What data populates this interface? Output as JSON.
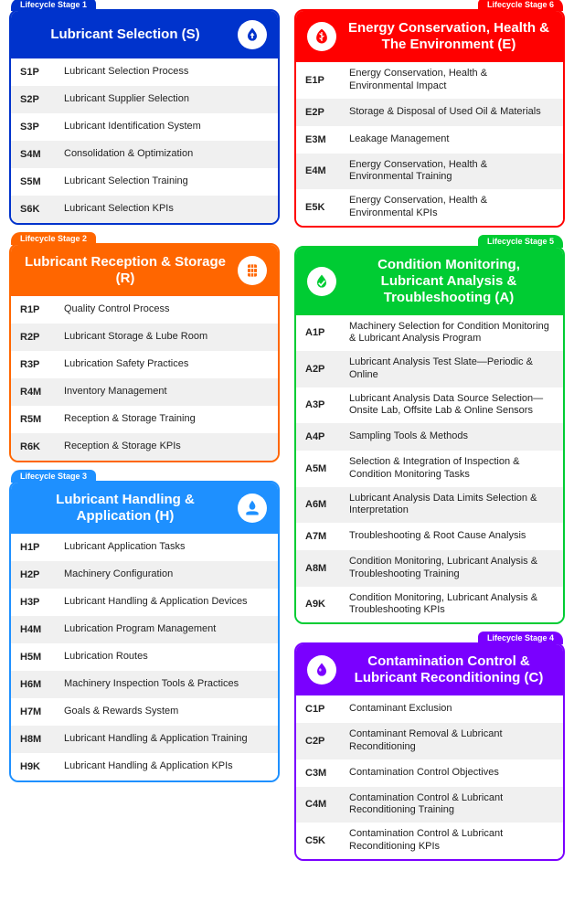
{
  "colors": {
    "blue": "#0033cc",
    "red": "#ff0000",
    "orange": "#ff6600",
    "green": "#00cc33",
    "lightblue": "#1e90ff",
    "purple": "#7a00ff"
  },
  "stages": {
    "s1": {
      "tab": "Lifecycle Stage 1",
      "title": "Lubricant Selection (S)",
      "color": "#0033cc",
      "tabSide": "left",
      "iconSide": "right",
      "rows": [
        {
          "code": "S1P",
          "label": "Lubricant Selection Process"
        },
        {
          "code": "S2P",
          "label": "Lubricant Supplier Selection"
        },
        {
          "code": "S3P",
          "label": "Lubricant Identification System"
        },
        {
          "code": "S4M",
          "label": "Consolidation & Optimization"
        },
        {
          "code": "S5M",
          "label": "Lubricant Selection Training"
        },
        {
          "code": "S6K",
          "label": "Lubricant Selection KPIs"
        }
      ]
    },
    "s6": {
      "tab": "Lifecycle Stage 6",
      "title": "Energy Conservation, Health & The Environment (E)",
      "color": "#ff0000",
      "tabSide": "right",
      "iconSide": "left",
      "rows": [
        {
          "code": "E1P",
          "label": "Energy Conservation, Health & Environmental Impact"
        },
        {
          "code": "E2P",
          "label": "Storage & Disposal of Used Oil & Materials"
        },
        {
          "code": "E3M",
          "label": "Leakage Management"
        },
        {
          "code": "E4M",
          "label": "Energy Conservation, Health & Environmental Training"
        },
        {
          "code": "E5K",
          "label": "Energy Conservation, Health & Environmental KPIs"
        }
      ]
    },
    "s2": {
      "tab": "Lifecycle Stage 2",
      "title": "Lubricant Reception & Storage (R)",
      "color": "#ff6600",
      "tabSide": "left",
      "iconSide": "right",
      "rows": [
        {
          "code": "R1P",
          "label": "Quality Control Process"
        },
        {
          "code": "R2P",
          "label": "Lubricant Storage & Lube Room"
        },
        {
          "code": "R3P",
          "label": "Lubrication Safety Practices"
        },
        {
          "code": "R4M",
          "label": "Inventory Management"
        },
        {
          "code": "R5M",
          "label": "Reception & Storage Training"
        },
        {
          "code": "R6K",
          "label": "Reception & Storage KPIs"
        }
      ]
    },
    "s5": {
      "tab": "Lifecycle Stage 5",
      "title": "Condition Monitoring, Lubricant Analysis & Troubleshooting (A)",
      "color": "#00cc33",
      "tabSide": "right",
      "iconSide": "left",
      "rows": [
        {
          "code": "A1P",
          "label": "Machinery Selection for Condition Monitoring & Lubricant Analysis Program"
        },
        {
          "code": "A2P",
          "label": "Lubricant Analysis Test Slate—Periodic & Online"
        },
        {
          "code": "A3P",
          "label": "Lubricant Analysis Data Source Selection—Onsite Lab, Offsite Lab & Online Sensors"
        },
        {
          "code": "A4P",
          "label": "Sampling Tools & Methods"
        },
        {
          "code": "A5M",
          "label": "Selection & Integration of Inspection & Condition Monitoring Tasks"
        },
        {
          "code": "A6M",
          "label": "Lubricant Analysis Data Limits Selection & Interpretation"
        },
        {
          "code": "A7M",
          "label": "Troubleshooting & Root Cause Analysis"
        },
        {
          "code": "A8M",
          "label": "Condition Monitoring, Lubricant Analysis & Troubleshooting Training"
        },
        {
          "code": "A9K",
          "label": "Condition Monitoring, Lubricant Analysis & Troubleshooting KPIs"
        }
      ]
    },
    "s3": {
      "tab": "Lifecycle Stage 3",
      "title": "Lubricant Handling & Application (H)",
      "color": "#1e90ff",
      "tabSide": "left",
      "iconSide": "right",
      "rows": [
        {
          "code": "H1P",
          "label": "Lubricant Application Tasks"
        },
        {
          "code": "H2P",
          "label": "Machinery Configuration"
        },
        {
          "code": "H3P",
          "label": "Lubricant Handling & Application Devices"
        },
        {
          "code": "H4M",
          "label": "Lubrication Program Management"
        },
        {
          "code": "H5M",
          "label": "Lubrication Routes"
        },
        {
          "code": "H6M",
          "label": "Machinery Inspection Tools & Practices"
        },
        {
          "code": "H7M",
          "label": "Goals & Rewards System"
        },
        {
          "code": "H8M",
          "label": "Lubricant Handling & Application Training"
        },
        {
          "code": "H9K",
          "label": "Lubricant Handling & Application KPIs"
        }
      ]
    },
    "s4": {
      "tab": "Lifecycle Stage 4",
      "title": "Contamination Control & Lubricant Reconditioning (C)",
      "color": "#7a00ff",
      "tabSide": "right",
      "iconSide": "left",
      "rows": [
        {
          "code": "C1P",
          "label": "Contaminant Exclusion"
        },
        {
          "code": "C2P",
          "label": "Contaminant Removal & Lubricant Reconditioning"
        },
        {
          "code": "C3M",
          "label": "Contamination Control Objectives"
        },
        {
          "code": "C4M",
          "label": "Contamination Control & Lubricant Reconditioning Training"
        },
        {
          "code": "C5K",
          "label": "Contamination Control & Lubricant Reconditioning KPIs"
        }
      ]
    }
  },
  "layout": {
    "leftCol": [
      "s1",
      "s2",
      "s3"
    ],
    "rightCol": [
      "s6",
      "s5",
      "s4"
    ]
  },
  "icons": {
    "s1": "drop-arrow",
    "s6": "leaf",
    "s2": "barrel",
    "s5": "drop-check",
    "s3": "drop-hand",
    "s4": "drop"
  }
}
